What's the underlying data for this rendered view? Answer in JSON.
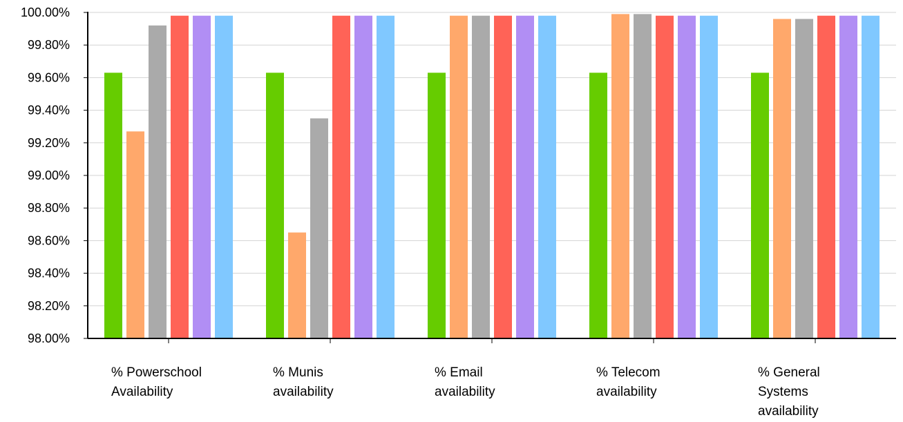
{
  "chart_data": {
    "type": "bar",
    "title": "",
    "xlabel": "",
    "ylabel": "",
    "categories": [
      [
        "% Powerschool",
        "Availability"
      ],
      [
        "% Munis",
        "availability"
      ],
      [
        "% Email",
        "availability"
      ],
      [
        "% Telecom",
        "availability"
      ],
      [
        "% General",
        "Systems",
        "availability"
      ]
    ],
    "ylim": [
      98.0,
      100.0
    ],
    "y_ticks": [
      "98.00%",
      "98.20%",
      "98.40%",
      "98.60%",
      "98.80%",
      "99.00%",
      "99.20%",
      "99.40%",
      "99.60%",
      "99.80%",
      "100.00%"
    ],
    "grid": true,
    "legend": "none",
    "series": [
      {
        "color": "#66cc00",
        "values": [
          99.63,
          99.63,
          99.63,
          99.63,
          99.63
        ]
      },
      {
        "color": "#ffa86b",
        "values": [
          99.27,
          98.65,
          99.98,
          99.99,
          99.96
        ]
      },
      {
        "color": "#aaaaaa",
        "values": [
          99.92,
          99.35,
          99.98,
          99.99,
          99.96
        ]
      },
      {
        "color": "#ff6357",
        "values": [
          99.98,
          99.98,
          99.98,
          99.98,
          99.98
        ]
      },
      {
        "color": "#b18ef4",
        "values": [
          99.98,
          99.98,
          99.98,
          99.98,
          99.98
        ]
      },
      {
        "color": "#80c8ff",
        "values": [
          99.98,
          99.98,
          99.98,
          99.98,
          99.98
        ]
      }
    ]
  }
}
